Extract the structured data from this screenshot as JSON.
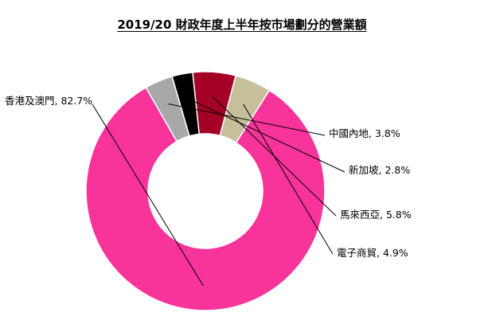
{
  "chart_data": {
    "type": "pie",
    "donut": true,
    "title": "2019/20 財政年度上半年按市場劃分的營業額",
    "slices": [
      {
        "label": "香港及澳門, 82.7%",
        "value": 82.7,
        "color": "#F8339A"
      },
      {
        "label": "中國內地, 3.8%",
        "value": 3.8,
        "color": "#A8A8A8"
      },
      {
        "label": "新加坡, 2.8%",
        "value": 2.8,
        "color": "#000000"
      },
      {
        "label": "馬來西亞, 5.8%",
        "value": 5.8,
        "color": "#A50026"
      },
      {
        "label": "電子商貿, 4.9%",
        "value": 4.9,
        "color": "#C6BF9A"
      }
    ]
  }
}
